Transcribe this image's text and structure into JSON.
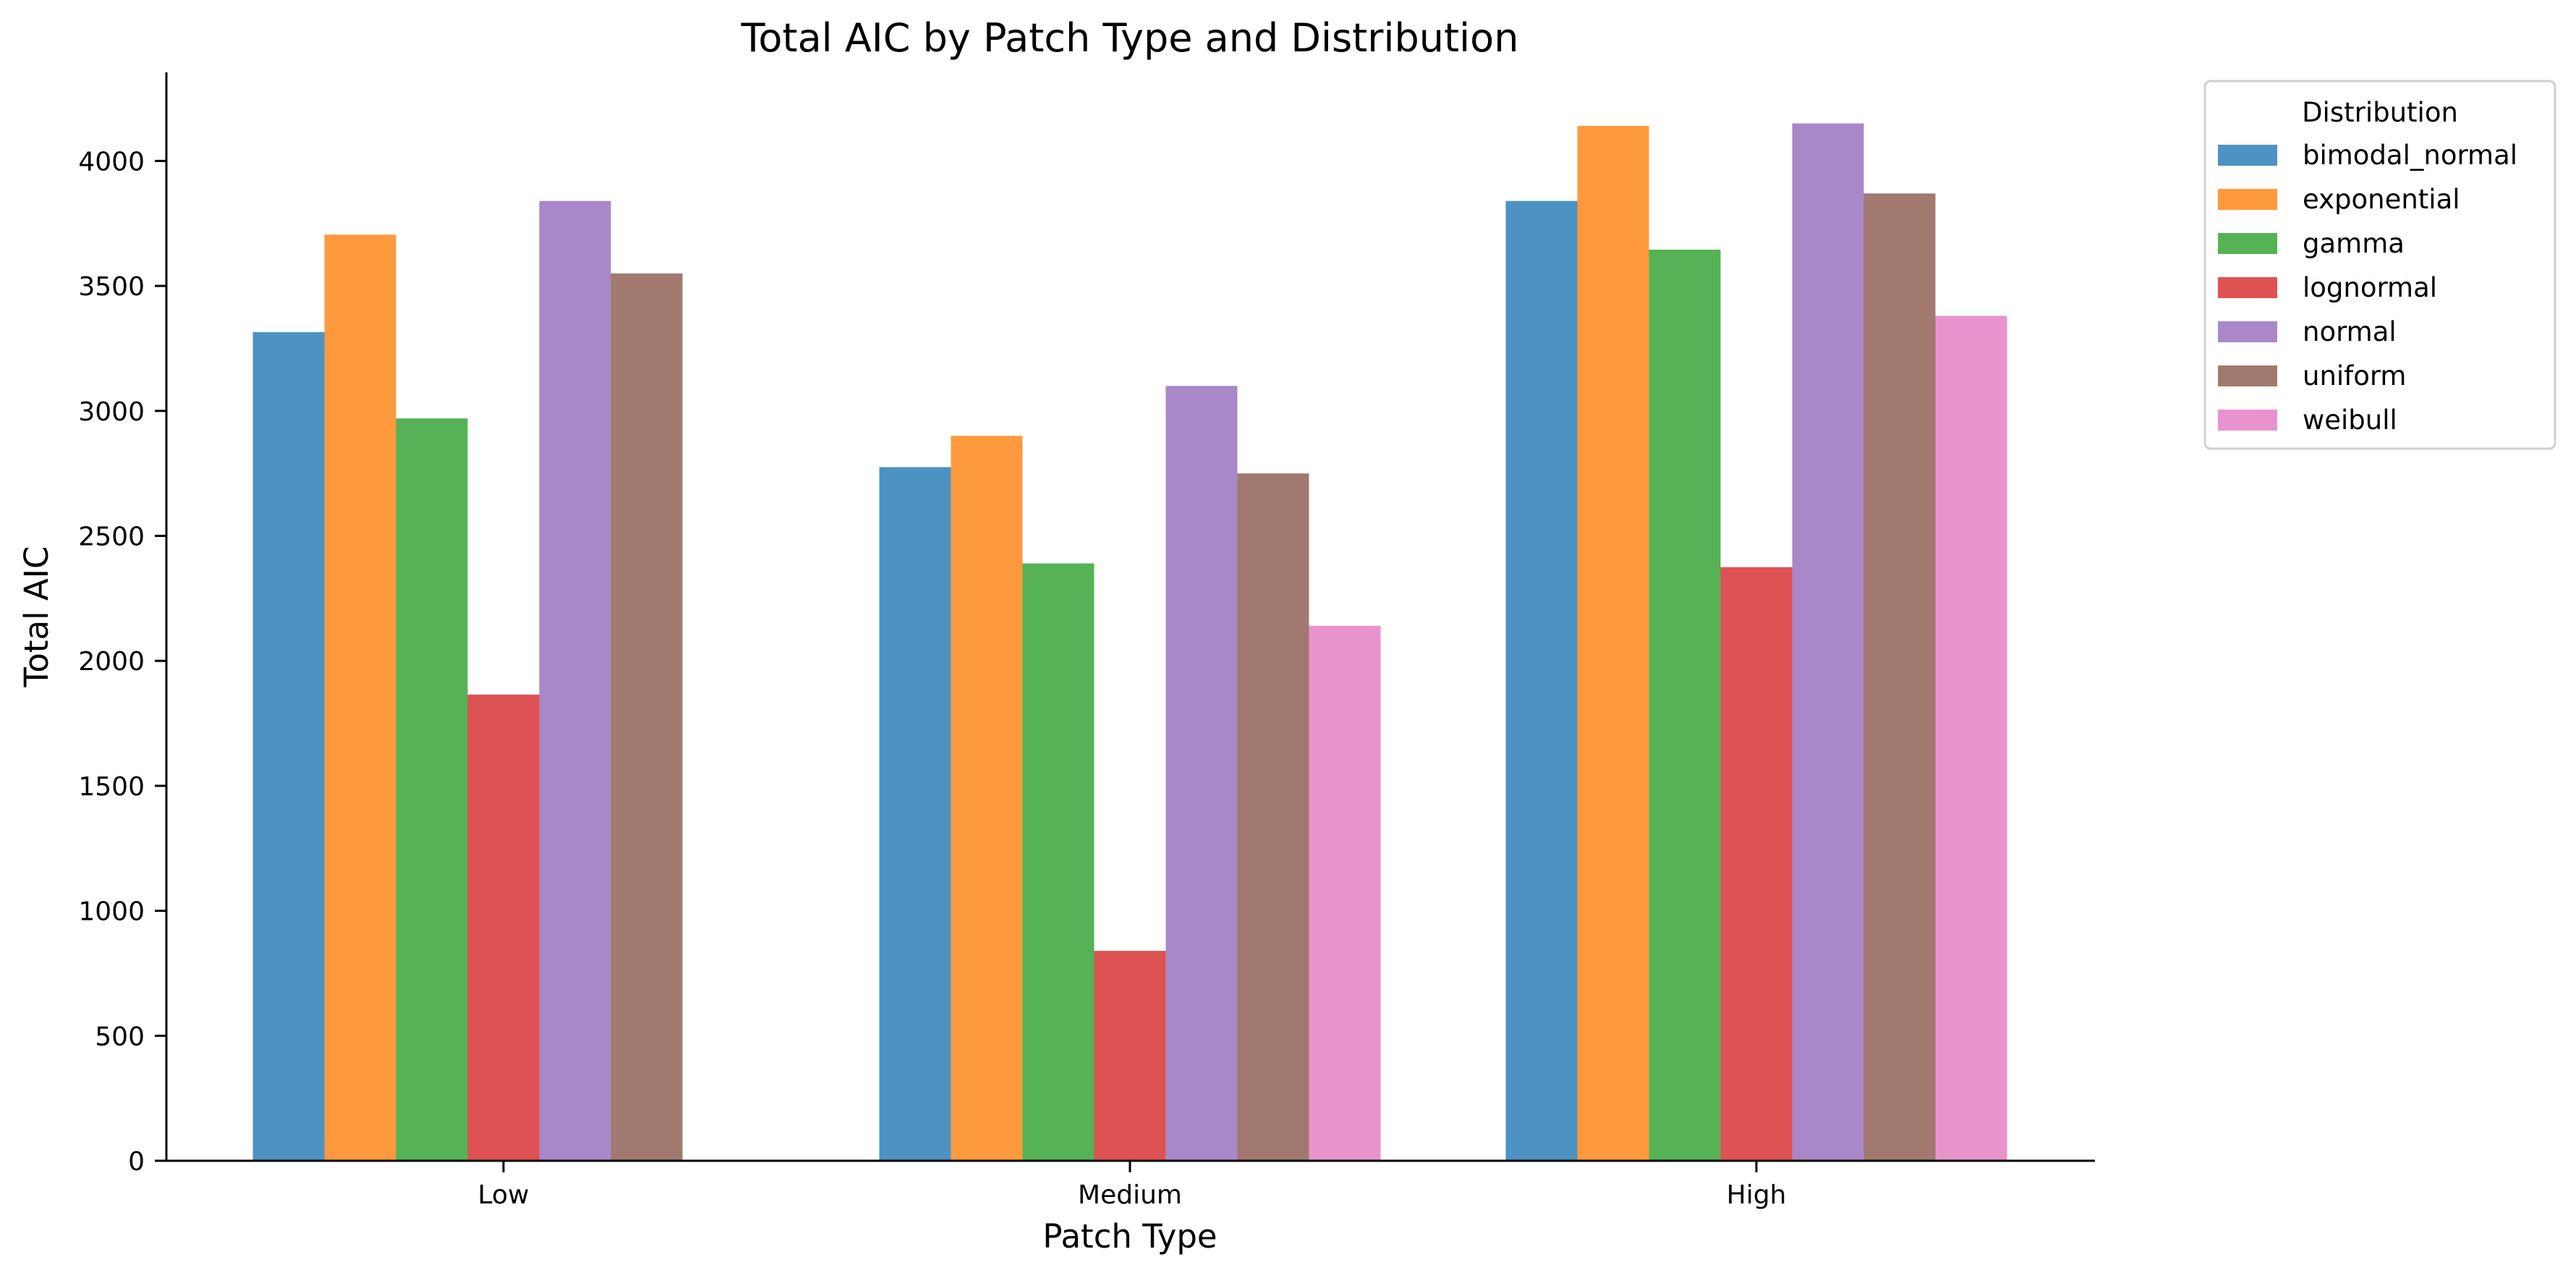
{
  "chart_data": {
    "type": "bar",
    "title": "Total AIC by Patch Type and Distribution",
    "xlabel": "Patch Type",
    "ylabel": "Total AIC",
    "categories": [
      "Low",
      "Medium",
      "High"
    ],
    "ylim": [
      0,
      4350
    ],
    "yticks": [
      0,
      500,
      1000,
      1500,
      2000,
      2500,
      3000,
      3500,
      4000
    ],
    "grid": false,
    "legend": {
      "title": "Distribution",
      "placement": "outside-top-right"
    },
    "series": [
      {
        "name": "bimodal_normal",
        "color": "#4c92c3",
        "values": [
          3315,
          2775,
          3840
        ]
      },
      {
        "name": "exponential",
        "color": "#ff993e",
        "values": [
          3705,
          2900,
          4140
        ]
      },
      {
        "name": "gamma",
        "color": "#55b255",
        "values": [
          2970,
          2390,
          3645
        ]
      },
      {
        "name": "lognormal",
        "color": "#de5253",
        "values": [
          1865,
          840,
          2375
        ]
      },
      {
        "name": "normal",
        "color": "#a987c9",
        "values": [
          3840,
          3100,
          4150
        ]
      },
      {
        "name": "uniform",
        "color": "#a1796f",
        "values": [
          3550,
          2750,
          3870
        ]
      },
      {
        "name": "weibull",
        "color": "#e993cc",
        "values": [
          null,
          2140,
          3380
        ]
      }
    ]
  }
}
